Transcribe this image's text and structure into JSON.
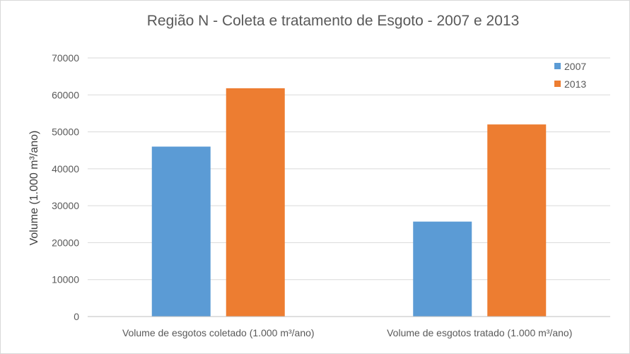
{
  "chart_data": {
    "type": "bar",
    "title": "Região N - Coleta e tratamento de Esgoto - 2007 e 2013",
    "xlabel": "",
    "ylabel": "Volume (1.000 m³/ano)",
    "categories": [
      "Volume de esgotos coletado (1.000 m³/ano)",
      "Volume de esgotos tratado (1.000 m³/ano)"
    ],
    "series": [
      {
        "name": "2007",
        "values": [
          46000,
          25700
        ],
        "color": "#5b9bd5"
      },
      {
        "name": "2013",
        "values": [
          61800,
          52000
        ],
        "color": "#ed7d31"
      }
    ],
    "ylim": [
      0,
      70000
    ],
    "yticks": [
      "0",
      "10000",
      "20000",
      "30000",
      "40000",
      "50000",
      "60000",
      "70000"
    ],
    "grid": true,
    "legend_position": "top-right"
  }
}
